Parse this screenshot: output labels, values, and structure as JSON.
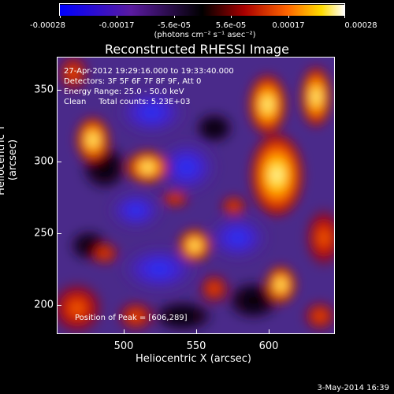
{
  "colorbar": {
    "ticks": [
      "-0.00028",
      "-0.00017",
      "-5.6e-05",
      "5.6e-05",
      "0.00017",
      "0.00028"
    ],
    "units": "(photons cm⁻² s⁻¹ asec⁻²)"
  },
  "plot": {
    "title": "Reconstructed RHESSI Image",
    "annotations": {
      "time_range": "27-Apr-2012 19:29:16.000 to 19:33:40.000",
      "detectors": "Detectors: 3F 5F 6F 7F 8F 9F, Att 0",
      "energy": "Energy Range: 25.0 - 50.0 keV",
      "clean": "Clean     Total counts: 5.23E+03"
    },
    "peak": "Position of Peak = [606,289]",
    "x_ticks": [
      "500",
      "550",
      "600"
    ],
    "y_ticks": [
      "350",
      "300",
      "250",
      "200"
    ],
    "xlabel": "Heliocentric X (arcsec)",
    "ylabel": "Heliocentric Y (arcsec)"
  },
  "footer": {
    "date": "3-May-2014 16:39"
  },
  "colors": {
    "low": "#0000ff",
    "mid": "#000000",
    "high": "#ffffff"
  }
}
